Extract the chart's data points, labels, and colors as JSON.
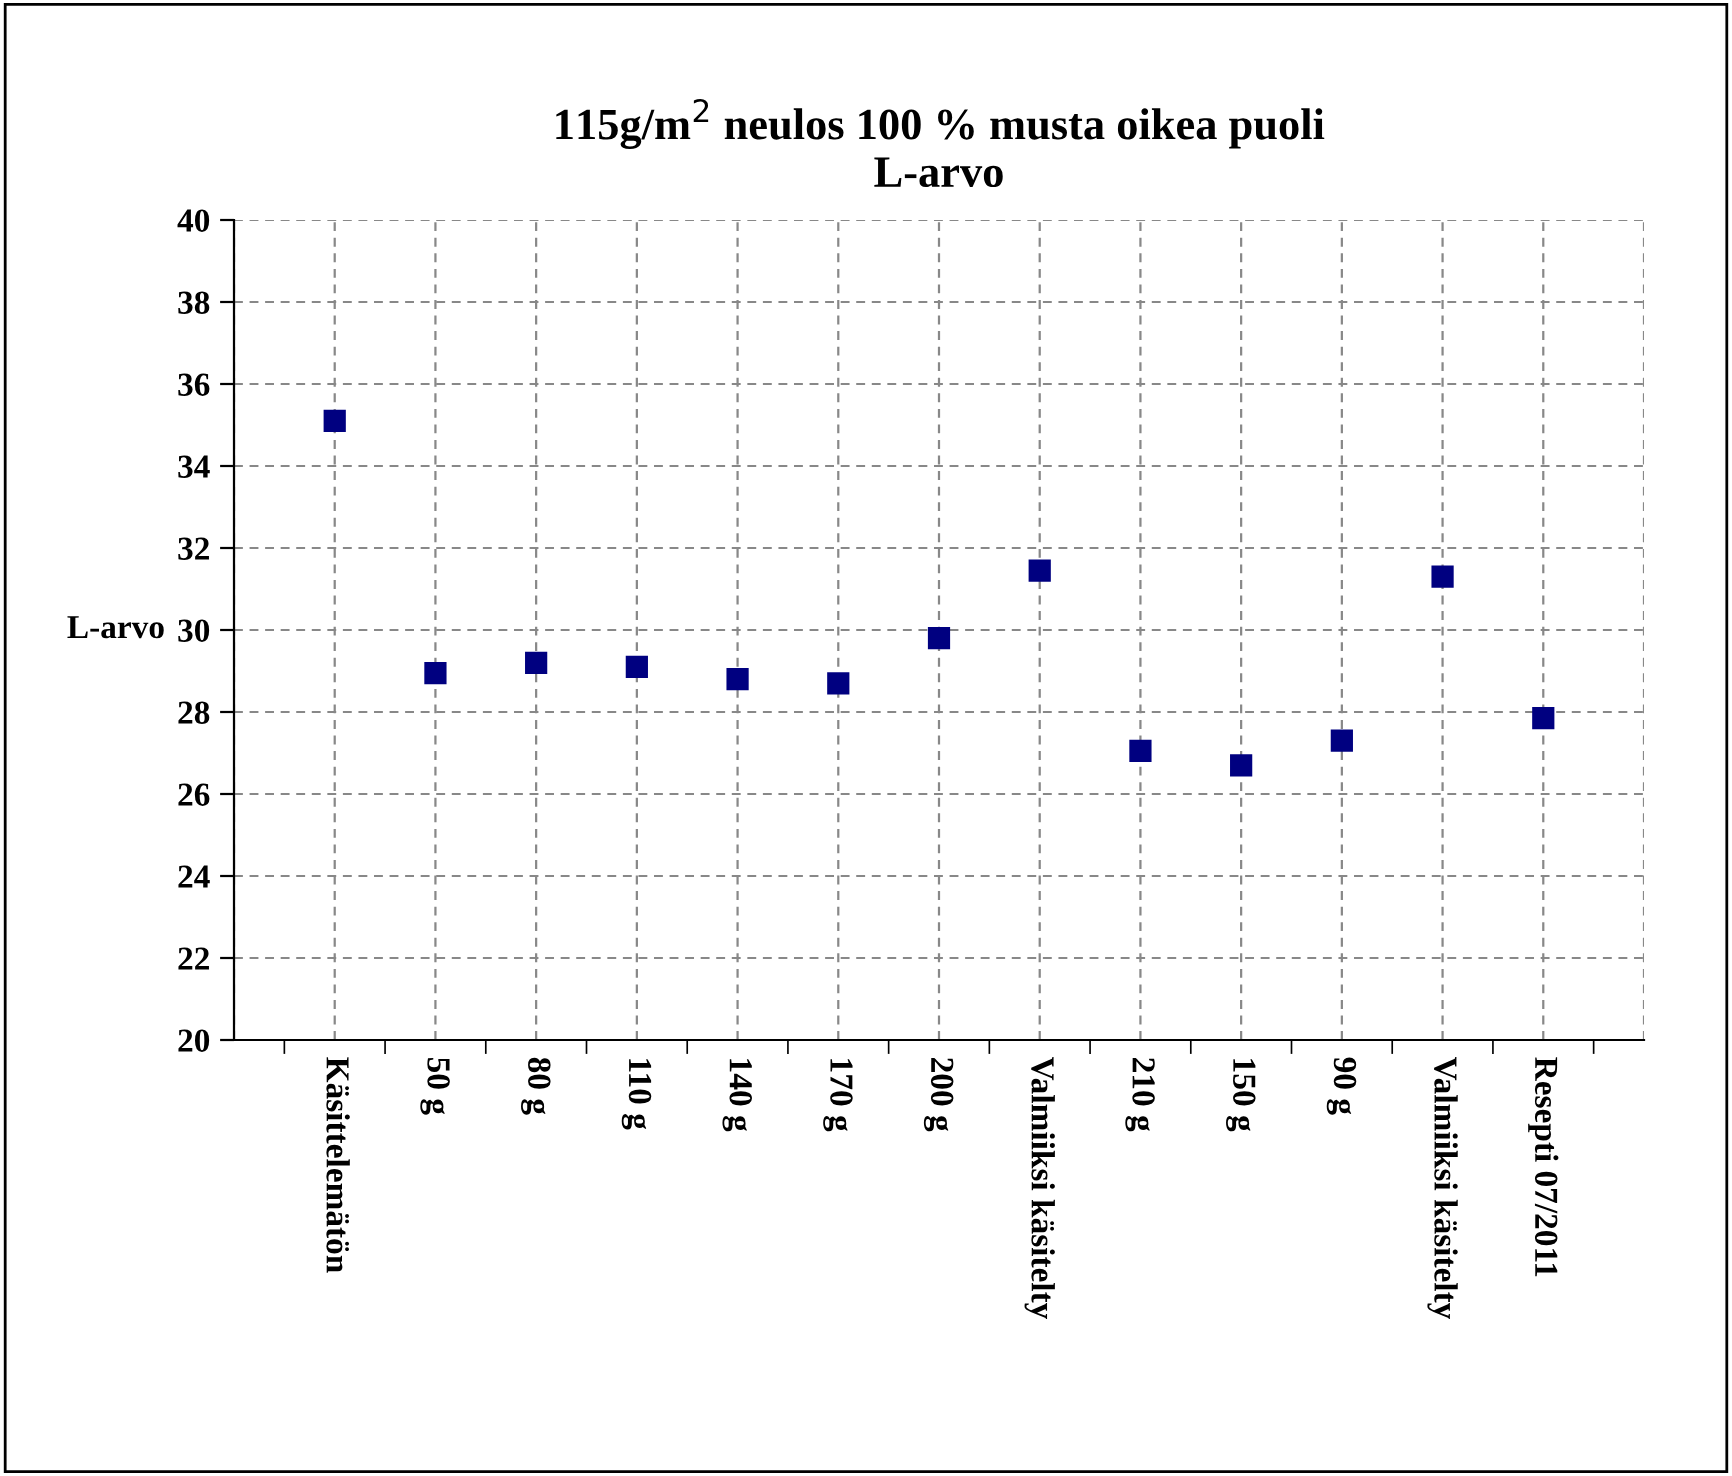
{
  "chart_data": {
    "type": "scatter",
    "title": "115g/m$^{2}$ neulos 100 % musta oikea puoli\nL-arvo",
    "ylabel": "L-arvo",
    "categories": [
      "Käsittelemätön",
      "50 g",
      "80 g",
      "110 g",
      "140 g",
      "170 g",
      "200 g",
      "Valmiiksi käsitelty",
      "210 g",
      "150 g",
      "90 g",
      "Valmiiksi käsitelty",
      "Resepti 07/2011"
    ],
    "series": [
      {
        "color": "#000080",
        "values": [
          35.1,
          28.95,
          29.2,
          29.1,
          28.8,
          28.7,
          29.8,
          31.45,
          27.05,
          26.7,
          27.3,
          31.3,
          27.85
        ]
      }
    ],
    "ylim": [
      20,
      40
    ],
    "yticks": [
      20,
      22,
      24,
      26,
      28,
      30,
      32,
      34,
      36,
      38,
      40
    ],
    "grid": true,
    "marker": "square",
    "legend": false
  }
}
